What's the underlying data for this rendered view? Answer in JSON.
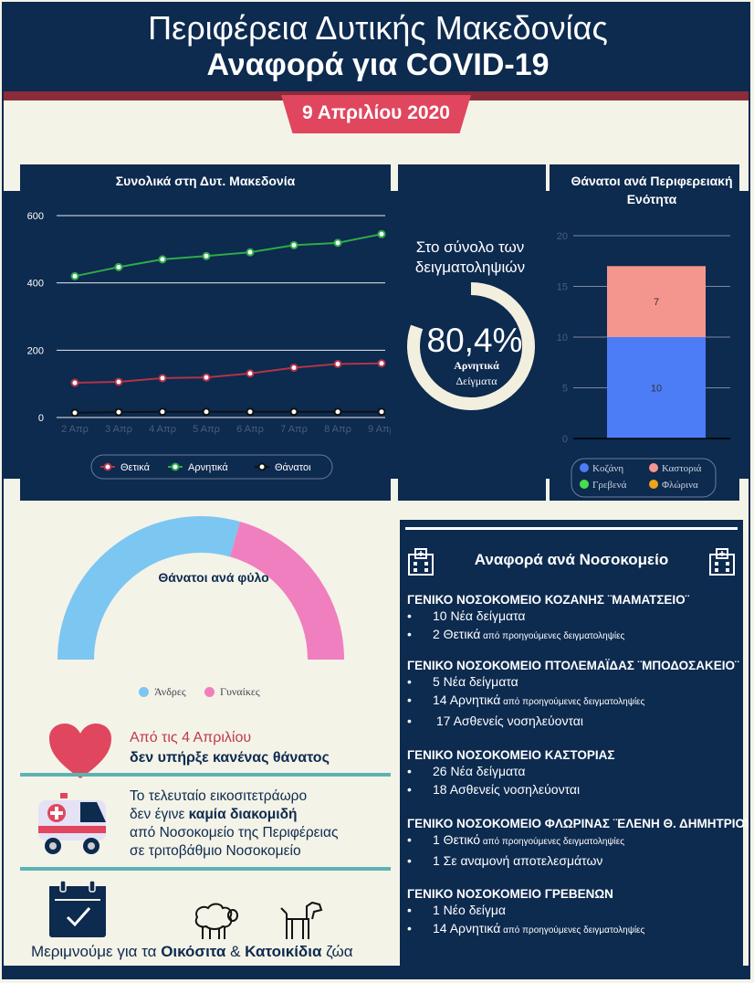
{
  "header": {
    "line1": "Περιφέρεια Δυτικής Μακεδονίας",
    "line2": "Αναφορά για COVID-19",
    "date": "9 Απριλίου 2020"
  },
  "colors": {
    "navy": "#0d2a4f",
    "crimson": "#8c2b3a",
    "pink_red": "#e0465e",
    "positive": "#b43249",
    "negative": "#2eaa4a",
    "deaths": "#111111",
    "kozani": "#4d7cf7",
    "kastoria": "#f5968e",
    "men": "#7cc6f2",
    "women": "#f07fbf",
    "teal": "#5bb3b3"
  },
  "chart_data": [
    {
      "type": "line",
      "title": "Συνολικά στη Δυτ. Μακεδονία",
      "categories": [
        "2 Απρ",
        "3 Απρ",
        "4 Απρ",
        "5 Απρ",
        "6 Απρ",
        "7 Απρ",
        "8 Απρ",
        "9 Απρ"
      ],
      "series": [
        {
          "name": "Θετικά",
          "color": "#b43249",
          "values": [
            103,
            106,
            117,
            119,
            131,
            148,
            159,
            161
          ]
        },
        {
          "name": "Αρνητικά",
          "color": "#2eaa4a",
          "values": [
            420,
            447,
            470,
            480,
            491,
            512,
            519,
            545
          ]
        },
        {
          "name": "Θάνατοι",
          "color": "#111111",
          "values": [
            14,
            16,
            17,
            17,
            17,
            17,
            17,
            17
          ]
        }
      ],
      "ylim": [
        0,
        600
      ],
      "yticks": [
        "0",
        "200",
        "400",
        "600"
      ],
      "grid": true,
      "legend": "bottom"
    },
    {
      "type": "bar",
      "title": "Θάνατοι ανά Περιφερειακή Ενότητα",
      "stacked": true,
      "series": [
        {
          "name": "Κοζάνη",
          "color": "#4d7cf7",
          "values": [
            10
          ],
          "label": "10"
        },
        {
          "name": "Καστοριά",
          "color": "#f5968e",
          "values": [
            7
          ],
          "label": "7"
        },
        {
          "name": "Γρεβενά",
          "color": "#46e04a",
          "values": [
            0
          ]
        },
        {
          "name": "Φλώρινα",
          "color": "#f0a31c",
          "values": [
            0
          ]
        }
      ],
      "ylim": [
        0,
        20
      ],
      "yticks": [
        "0",
        "5",
        "10",
        "15",
        "20"
      ],
      "grid": true,
      "legend": "bottom"
    },
    {
      "type": "pie",
      "title": "Θάνατοι ανά φύλο",
      "series": [
        {
          "name": "Άνδρες",
          "color": "#7cc6f2",
          "value": 10
        },
        {
          "name": "Γυναίκες",
          "color": "#f07fbf",
          "value": 7
        }
      ],
      "legend": "bottom"
    }
  ],
  "sampling": {
    "caption": "Στο σύνολο των δειγματοληψιών",
    "percent": "80,4%",
    "percent_value": 80.4,
    "label_line1": "Αρνητικά",
    "label_line2": "Δείγματα"
  },
  "info": {
    "no_deaths_line1": "Από τις 4 Απριλίου",
    "no_deaths_line2": "δεν υπήρξε κανένας θάνατος",
    "transfer_line1": "Το τελευταίο εικοσιτετράωρο",
    "transfer_line2_a": "δεν έγινε ",
    "transfer_line2_b": "καμία διακομιδή",
    "transfer_line3": "από Νοσοκομείο της Περιφέρειας",
    "transfer_line4": "σε τριτοβάθμιο Νοσοκομείο",
    "care_a": "Μεριμνούμε για τα ",
    "care_b": "Οικόσιτα",
    "care_c": " & ",
    "care_d": "Κατοικίδια",
    "care_e": " ζώα"
  },
  "hospitals": {
    "title": "Αναφορά ανά Νοσοκομείο",
    "bullet": "•",
    "list": [
      {
        "name": "ΓΕΝΙΚΟ ΝΟΣΟΚΟΜΕΙΟ ΚΟΖΑΝΗΣ ¨ΜΑΜΑΤΣΕΙΟ¨",
        "items": [
          {
            "main": "10 Νέα δείγματα",
            "note": ""
          },
          {
            "main": "2 Θετικά",
            "note": " από προηγούμενες δειγματοληψίες"
          }
        ]
      },
      {
        "name": "ΓΕΝΙΚΟ ΝΟΣΟΚΟΜΕΙΟ ΠΤΟΛΕΜΑΪΔΑΣ ¨ΜΠΟΔΟΣΑΚΕΙΟ¨",
        "items": [
          {
            "main": "5 Νέα δείγματα",
            "note": ""
          },
          {
            "main": "14 Αρνητικά",
            "note": " από προηγούμενες δειγματοληψίες"
          },
          {
            "main": " 17 Ασθενείς νοσηλεύονται",
            "note": ""
          }
        ]
      },
      {
        "name": "ΓΕΝΙΚΟ ΝΟΣΟΚΟΜΕΙΟ ΚΑΣΤΟΡΙΑΣ",
        "items": [
          {
            "main": "26 Νέα δείγματα",
            "note": ""
          },
          {
            "main": "18 Ασθενείς νοσηλεύονται",
            "note": ""
          }
        ]
      },
      {
        "name": "ΓΕΝΙΚΟ ΝΟΣΟΚΟΜΕΙΟ ΦΛΩΡΙΝΑΣ ¨ΕΛΕΝΗ Θ. ΔΗΜΗΤΡΙΟΥ¨",
        "items": [
          {
            "main": "1 Θετικό",
            "note": " από προηγούμενες δειγματοληψίες"
          },
          {
            "main": "1 Σε αναμονή αποτελεσμάτων",
            "note": ""
          }
        ]
      },
      {
        "name": "ΓΕΝΙΚΟ ΝΟΣΟΚΟΜΕΙΟ ΓΡΕΒΕΝΩΝ",
        "items": [
          {
            "main": "1 Νέο δείγμα",
            "note": ""
          },
          {
            "main": "14 Αρνητικά",
            "note": " από προηγούμενες δειγματοληψίες"
          }
        ]
      }
    ]
  }
}
